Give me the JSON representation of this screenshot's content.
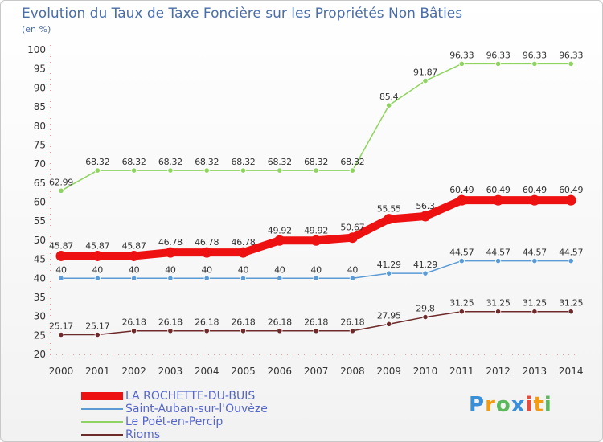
{
  "title": "Evolution du Taux de Taxe Foncière sur les Propriétés Non Bâties",
  "unit_label": "(en %)",
  "logo": {
    "text": "Proxiti"
  },
  "chart_data": {
    "type": "line",
    "title": "Evolution du Taux de Taxe Foncière sur les Propriétés Non Bâties",
    "ylabel": "(en %)",
    "xlabel": "",
    "ylim": [
      20,
      100
    ],
    "y_ticks": [
      20,
      25,
      30,
      35,
      40,
      45,
      50,
      55,
      60,
      65,
      70,
      75,
      80,
      85,
      90,
      95,
      100
    ],
    "x": [
      "2000",
      "2001",
      "2002",
      "2003",
      "2004",
      "2005",
      "2006",
      "2007",
      "2008",
      "2009",
      "2010",
      "2011",
      "2012",
      "2013",
      "2014"
    ],
    "grid": false,
    "legend_position": "bottom-left",
    "series": [
      {
        "name": "LA ROCHETTE-DU-BUIS",
        "color": "#ee1111",
        "values": [
          45.87,
          45.87,
          45.87,
          46.78,
          46.78,
          46.78,
          49.92,
          49.92,
          50.67,
          55.55,
          56.3,
          60.49,
          60.49,
          60.49,
          60.49
        ],
        "labels": [
          "45.87",
          "45.87",
          "45.87",
          "46.78",
          "46.78",
          "46.78",
          "49.92",
          "49.92",
          "50.67",
          "55.55",
          "56.3",
          "60.49",
          "60.49",
          "60.49",
          "60.49"
        ]
      },
      {
        "name": "Saint-Auban-sur-l'Ouvèze",
        "color": "#5b9bd5",
        "values": [
          40,
          40,
          40,
          40,
          40,
          40,
          40,
          40,
          40,
          41.29,
          41.29,
          44.57,
          44.57,
          44.57,
          44.57
        ],
        "labels": [
          "40",
          "40",
          "40",
          "40",
          "40",
          "40",
          "40",
          "40",
          "40",
          "41.29",
          "41.29",
          "44.57",
          "44.57",
          "44.57",
          "44.57"
        ]
      },
      {
        "name": "Le Poët-en-Percip",
        "color": "#8fd460",
        "values": [
          62.99,
          68.32,
          68.32,
          68.32,
          68.32,
          68.32,
          68.32,
          68.32,
          68.32,
          85.4,
          91.87,
          96.33,
          96.33,
          96.33,
          96.33
        ],
        "labels": [
          "62.99",
          "68.32",
          "68.32",
          "68.32",
          "68.32",
          "68.32",
          "68.32",
          "68.32",
          "68.32",
          "85.4",
          "91.87",
          "96.33",
          "96.33",
          "96.33",
          "96.33"
        ]
      },
      {
        "name": "Rioms",
        "color": "#6e2a2a",
        "values": [
          25.17,
          25.17,
          26.18,
          26.18,
          26.18,
          26.18,
          26.18,
          26.18,
          26.18,
          27.95,
          29.8,
          31.25,
          31.25,
          31.25,
          31.25
        ],
        "labels": [
          "25.17",
          "25.17",
          "26.18",
          "26.18",
          "26.18",
          "26.18",
          "26.18",
          "26.18",
          "26.18",
          "27.95",
          "29.8",
          "31.25",
          "31.25",
          "31.25",
          "31.25"
        ]
      }
    ]
  }
}
